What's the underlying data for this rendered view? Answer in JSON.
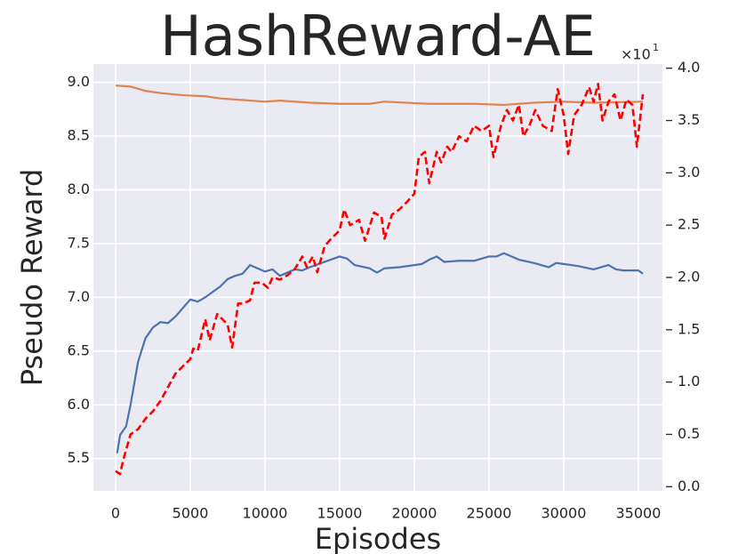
{
  "chart_data": {
    "type": "line",
    "title": "HashReward-AE",
    "xlabel": "Episodes",
    "ylabel": "Pseudo Reward",
    "y2_offset_base": "×10",
    "y2_offset_exponent": "1",
    "background": "#eaeaf2",
    "grid": true,
    "xlim": [
      -1490,
      36610
    ],
    "xticks": [
      0,
      5000,
      10000,
      15000,
      20000,
      25000,
      30000,
      35000
    ],
    "ylim": [
      5.2,
      9.17
    ],
    "yticks": [
      5.5,
      {
        "value": 6,
        "label": "6.0"
      },
      6.5,
      {
        "value": 7,
        "label": "7.0"
      },
      7.5,
      {
        "value": 8,
        "label": "8.0"
      },
      8.5,
      {
        "value": 9,
        "label": "9.0"
      }
    ],
    "y2lim": [
      -0.04,
      4.04
    ],
    "y2ticks": [
      {
        "value": 0,
        "label": "0.0"
      },
      0.5,
      {
        "value": 1,
        "label": "1.0"
      },
      1.5,
      {
        "value": 2,
        "label": "2.0"
      },
      2.5,
      {
        "value": 3,
        "label": "3.0"
      },
      3.5,
      {
        "value": 4,
        "label": "4.0"
      }
    ],
    "series": [
      {
        "color": "#4c72b0",
        "dash": false,
        "x": [
          100,
          300,
          700,
          1000,
          1500,
          2000,
          2500,
          3000,
          3500,
          4000,
          4500,
          5000,
          5500,
          6000,
          7000,
          7500,
          8000,
          8500,
          9000,
          9500,
          10000,
          10500,
          11000,
          12000,
          12500,
          13000,
          14000,
          15000,
          15500,
          16000,
          17000,
          17500,
          18000,
          19000,
          20000,
          20500,
          21000,
          21500,
          22000,
          23000,
          24000,
          25000,
          25500,
          26000,
          27000,
          28000,
          29000,
          29500,
          30000,
          31000,
          32000,
          33000,
          33500,
          34000,
          35000,
          35300
        ],
        "values": [
          5.55,
          5.72,
          5.8,
          6.0,
          6.4,
          6.62,
          6.72,
          6.77,
          6.76,
          6.82,
          6.9,
          6.98,
          6.96,
          7.0,
          7.1,
          7.17,
          7.2,
          7.22,
          7.3,
          7.27,
          7.24,
          7.26,
          7.2,
          7.26,
          7.25,
          7.28,
          7.33,
          7.38,
          7.36,
          7.3,
          7.27,
          7.23,
          7.27,
          7.28,
          7.3,
          7.31,
          7.35,
          7.38,
          7.33,
          7.34,
          7.34,
          7.38,
          7.38,
          7.41,
          7.35,
          7.32,
          7.28,
          7.32,
          7.31,
          7.29,
          7.26,
          7.3,
          7.26,
          7.25,
          7.25,
          7.22
        ]
      },
      {
        "color": "#dd8452",
        "dash": false,
        "x": [
          0,
          1000,
          2000,
          3000,
          4500,
          6000,
          7000,
          8000,
          10000,
          11000,
          13000,
          15000,
          17000,
          18000,
          21000,
          24000,
          26000,
          28000,
          30000,
          32000,
          35300
        ],
        "values": [
          8.97,
          8.96,
          8.92,
          8.9,
          8.88,
          8.87,
          8.85,
          8.84,
          8.82,
          8.83,
          8.81,
          8.8,
          8.8,
          8.82,
          8.8,
          8.8,
          8.79,
          8.81,
          8.82,
          8.81,
          8.82
        ]
      },
      {
        "color": "#ff0000",
        "dash": true,
        "axis": "y2",
        "x": [
          0,
          300,
          500,
          1000,
          1500,
          2000,
          2500,
          3000,
          3500,
          4000,
          4500,
          5000,
          5200,
          5500,
          6000,
          6300,
          6800,
          7500,
          7800,
          8200,
          8500,
          9000,
          9300,
          9800,
          10200,
          10500,
          11000,
          11500,
          12000,
          12500,
          12800,
          13200,
          13500,
          14000,
          14300,
          15000,
          15300,
          15700,
          16300,
          16700,
          17300,
          17800,
          18000,
          18500,
          19000,
          19500,
          20000,
          20300,
          20700,
          21000,
          21500,
          21800,
          22200,
          22500,
          23000,
          23500,
          24000,
          24500,
          25000,
          25300,
          25800,
          26200,
          26600,
          27000,
          27300,
          27700,
          28100,
          28600,
          29200,
          29600,
          30000,
          30300,
          30700,
          31200,
          31700,
          32000,
          32300,
          32600,
          33000,
          33400,
          33800,
          34200,
          34600,
          34900,
          35300
        ],
        "values": [
          0.15,
          0.12,
          0.25,
          0.5,
          0.55,
          0.65,
          0.72,
          0.82,
          0.95,
          1.08,
          1.15,
          1.22,
          1.32,
          1.3,
          1.6,
          1.4,
          1.65,
          1.55,
          1.33,
          1.75,
          1.75,
          1.78,
          1.95,
          1.95,
          1.9,
          2.0,
          1.98,
          2.02,
          2.08,
          2.2,
          2.1,
          2.2,
          2.05,
          2.3,
          2.35,
          2.45,
          2.65,
          2.5,
          2.55,
          2.35,
          2.62,
          2.58,
          2.37,
          2.6,
          2.65,
          2.72,
          2.8,
          3.15,
          3.2,
          2.9,
          3.2,
          3.1,
          3.25,
          3.2,
          3.35,
          3.3,
          3.45,
          3.4,
          3.45,
          3.15,
          3.45,
          3.6,
          3.5,
          3.65,
          3.35,
          3.45,
          3.6,
          3.45,
          3.4,
          3.8,
          3.55,
          3.18,
          3.55,
          3.65,
          3.82,
          3.68,
          3.85,
          3.5,
          3.68,
          3.75,
          3.5,
          3.7,
          3.65,
          3.25,
          3.75
        ]
      }
    ]
  }
}
